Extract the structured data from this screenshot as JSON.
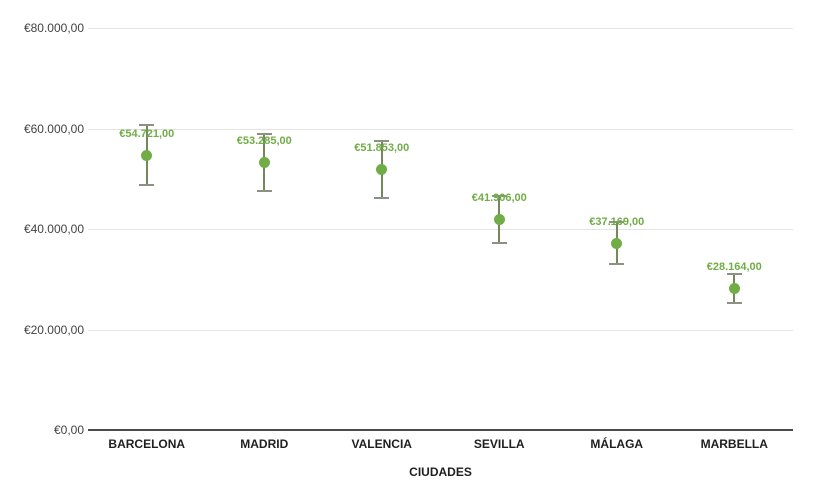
{
  "chart_data": {
    "type": "scatter",
    "title": "",
    "xlabel": "CIUDADES",
    "ylabel": "",
    "legend": "none",
    "grid": true,
    "y_axis": {
      "min": 0,
      "max": 80000,
      "tick_interval": 20000,
      "tick_values": [
        0,
        20000,
        40000,
        60000,
        80000
      ],
      "tick_labels": [
        "€0,00",
        "€20.000,00",
        "€40.000,00",
        "€60.000,00",
        "€80.000,00"
      ]
    },
    "categories": [
      "BARCELONA",
      "MADRID",
      "VALENCIA",
      "SEVILLA",
      "MÁLAGA",
      "MARBELLA"
    ],
    "points": [
      {
        "category": "BARCELONA",
        "value": 54721,
        "label": "€54.721,00",
        "error": 5900
      },
      {
        "category": "MADRID",
        "value": 53285,
        "label": "€53.285,00",
        "error": 5700
      },
      {
        "category": "VALENCIA",
        "value": 51853,
        "label": "€51.853,00",
        "error": 5600
      },
      {
        "category": "SEVILLA",
        "value": 41906,
        "label": "€41.906,00",
        "error": 4700
      },
      {
        "category": "MÁLAGA",
        "value": 37169,
        "label": "€37.169,00",
        "error": 4150
      },
      {
        "category": "MARBELLA",
        "value": 28164,
        "label": "€28.164,00",
        "error": 2900
      }
    ],
    "colors": {
      "point": "#70ad47",
      "value_label": "#70ad47",
      "error_stem": "#74885e",
      "error_cap": "#8d9083",
      "gridline": "#e4e4e4",
      "axis_line": "#4a4a4a",
      "y_tick_text": "#424242",
      "category_text": "#1f1f1f"
    }
  }
}
